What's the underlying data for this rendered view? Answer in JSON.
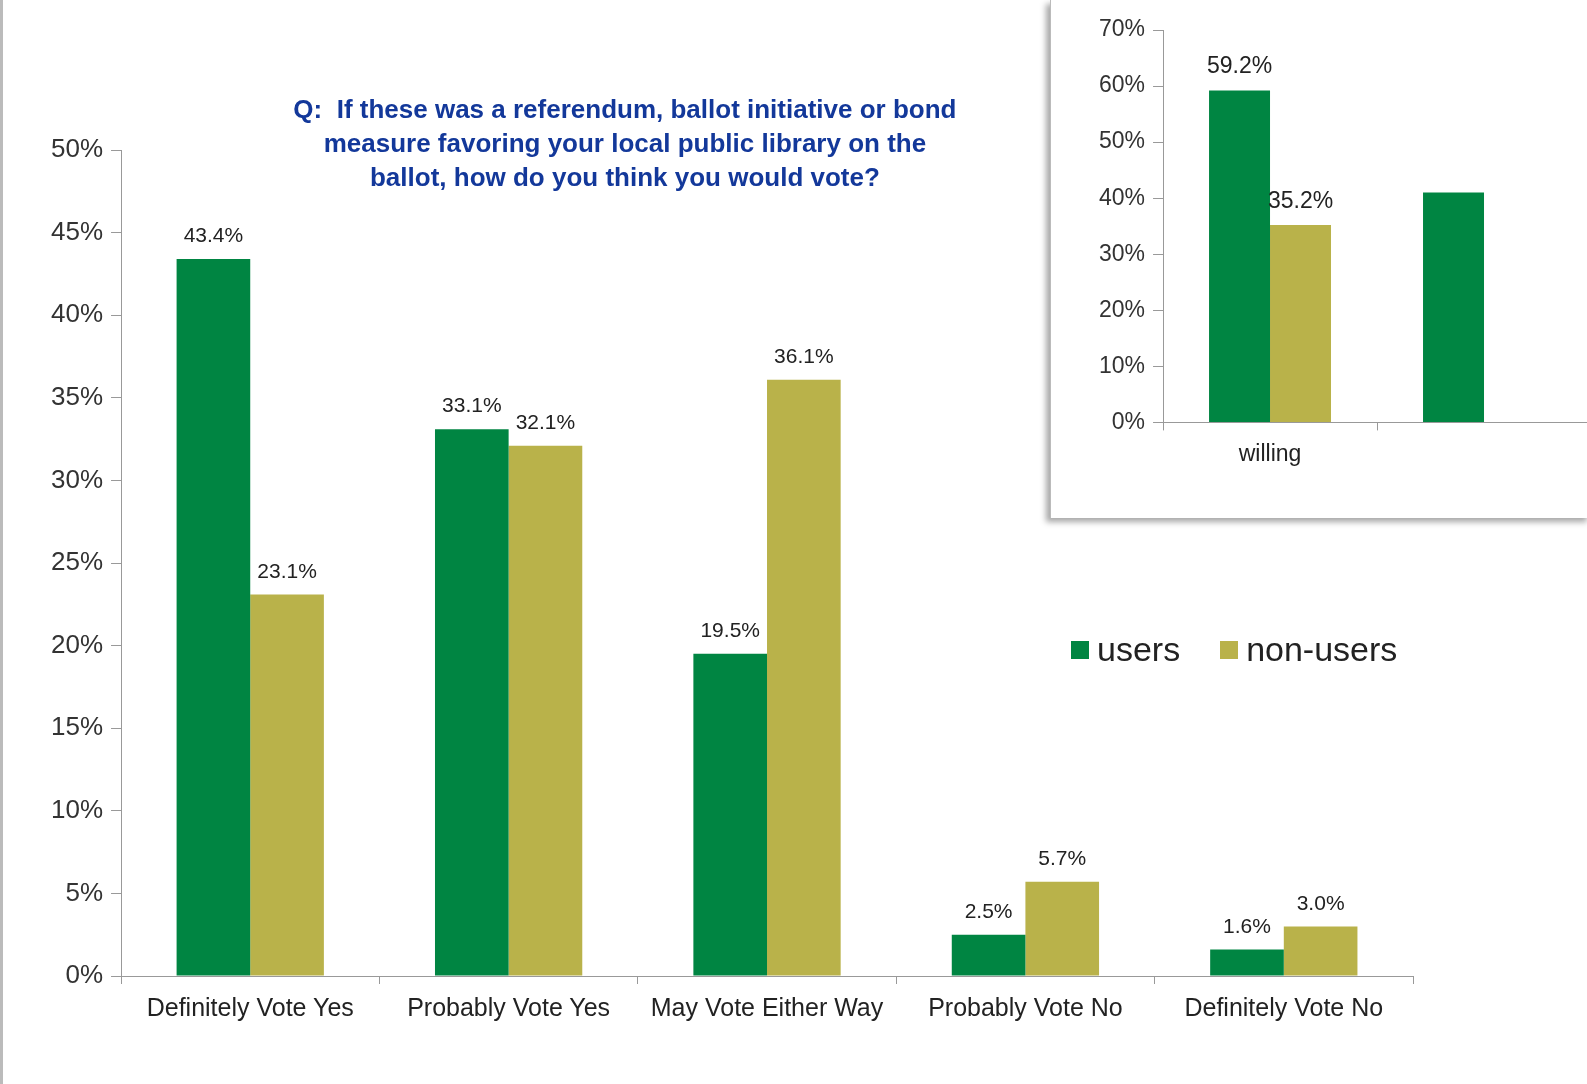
{
  "chart_data": [
    {
      "type": "bar",
      "title": "Q:  If these was a referendum, ballot initiative or bond measure favoring your local public library on the ballot, how do you think you would vote?",
      "categories": [
        "Definitely Vote Yes",
        "Probably Vote Yes",
        "May Vote Either Way",
        "Probably Vote No",
        "Definitely Vote No"
      ],
      "series": [
        {
          "name": "users",
          "color": "#008542",
          "values": [
            43.4,
            33.1,
            19.5,
            2.5,
            1.6
          ],
          "value_labels": [
            "43.4%",
            "33.1%",
            "19.5%",
            "2.5%",
            "1.6%"
          ]
        },
        {
          "name": "non-users",
          "color": "#b9b24a",
          "values": [
            23.1,
            32.1,
            36.1,
            5.7,
            3.0
          ],
          "value_labels": [
            "23.1%",
            "32.1%",
            "36.1%",
            "5.7%",
            "3.0%"
          ]
        }
      ],
      "ylim": [
        0,
        50
      ],
      "yticks": [
        {
          "value": 0,
          "label": "0%"
        },
        {
          "value": 5,
          "label": "5%"
        },
        {
          "value": 10,
          "label": "10%"
        },
        {
          "value": 15,
          "label": "15%"
        },
        {
          "value": 20,
          "label": "20%"
        },
        {
          "value": 25,
          "label": "25%"
        },
        {
          "value": 30,
          "label": "30%"
        },
        {
          "value": 35,
          "label": "35%"
        },
        {
          "value": 40,
          "label": "40%"
        },
        {
          "value": 45,
          "label": "45%"
        },
        {
          "value": 50,
          "label": "50%"
        }
      ],
      "grid": false,
      "legend": "right"
    },
    {
      "type": "bar",
      "categories": [
        "willing",
        null
      ],
      "series": [
        {
          "color": "#008542",
          "values": [
            59.2,
            41
          ],
          "value_labels": [
            "59.2%",
            null
          ]
        },
        {
          "color": "#b9b24a",
          "values": [
            35.2,
            null
          ],
          "value_labels": [
            "35.2%",
            null
          ]
        }
      ],
      "ylim": [
        0,
        70
      ],
      "yticks": [
        {
          "value": 0,
          "label": "0%"
        },
        {
          "value": 10,
          "label": "10%"
        },
        {
          "value": 20,
          "label": "20%"
        },
        {
          "value": 30,
          "label": "30%"
        },
        {
          "value": 40,
          "label": "40%"
        },
        {
          "value": 50,
          "label": "50%"
        },
        {
          "value": 60,
          "label": "60%"
        },
        {
          "value": 70,
          "label": "70%"
        }
      ],
      "grid": false,
      "legend": false
    }
  ]
}
